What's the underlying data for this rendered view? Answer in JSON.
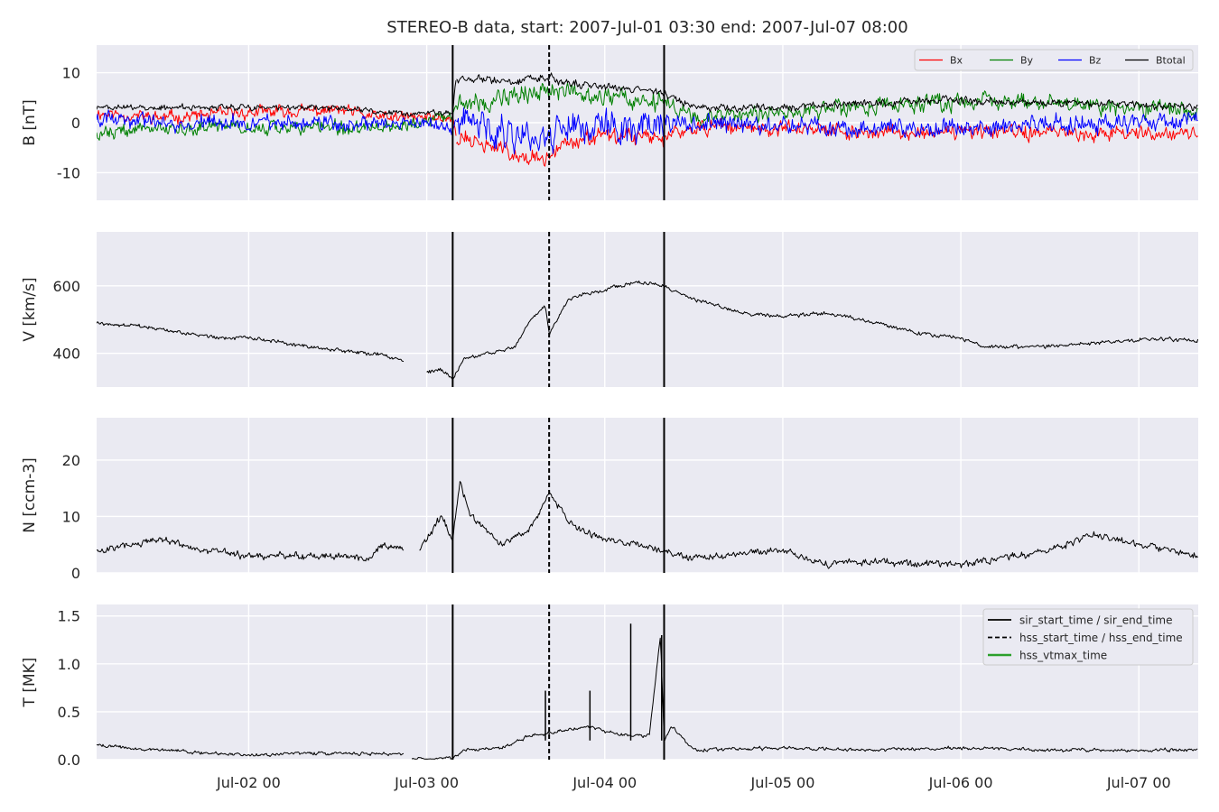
{
  "figure": {
    "title": "STEREO-B data, start: 2007-Jul-01 03:30  end: 2007-Jul-07 08:00"
  },
  "colors": {
    "panel_bg": "#eaeaf2",
    "grid": "#ffffff",
    "bx": "#ff0000",
    "by": "#008000",
    "bz": "#0000ff",
    "btotal": "#000000",
    "vtmax": "#2ca02c"
  },
  "chart_data": [
    {
      "type": "line",
      "x_axis": "time",
      "x_range": [
        "2007-07-01 03:30",
        "2007-07-07 08:00"
      ],
      "x_ticks": [
        "2007-07-02 00:00",
        "2007-07-03 00:00",
        "2007-07-04 00:00",
        "2007-07-05 00:00",
        "2007-07-06 00:00",
        "2007-07-07 00:00"
      ],
      "x_tick_labels": [
        "Jul-02 00",
        "Jul-03 00",
        "Jul-04 00",
        "Jul-05 00",
        "Jul-06 00",
        "Jul-07 00"
      ],
      "ylabel": "B [nT]",
      "ylim": [
        -15.5,
        15.5
      ],
      "yticks": [
        -10,
        0,
        10
      ],
      "grid": true,
      "legend": "top-right",
      "vlines": [
        {
          "time": "2007-07-03 03:30",
          "style": "solid"
        },
        {
          "time": "2007-07-03 16:30",
          "style": "dashed"
        },
        {
          "time": "2007-07-04 08:00",
          "style": "solid"
        }
      ],
      "series": [
        {
          "name": "Bx",
          "color": "#ff0000",
          "x": [
            "2007-07-01 03:30",
            "2007-07-01 12:00",
            "2007-07-02 00:00",
            "2007-07-02 12:00",
            "2007-07-02 18:00",
            "2007-07-03 00:00",
            "2007-07-03 03:30",
            "2007-07-03 04:00",
            "2007-07-03 12:00",
            "2007-07-03 16:30",
            "2007-07-03 18:00",
            "2007-07-04 00:00",
            "2007-07-04 08:00",
            "2007-07-04 12:00",
            "2007-07-05 00:00",
            "2007-07-05 12:00",
            "2007-07-06 00:00",
            "2007-07-06 12:00",
            "2007-07-07 00:00",
            "2007-07-07 08:00"
          ],
          "values": [
            2,
            1,
            2,
            2.5,
            1,
            1,
            1,
            -3,
            -6,
            -8,
            -4,
            -3,
            -3,
            -1,
            -1,
            -2,
            -2,
            -2,
            -2,
            -2
          ]
        },
        {
          "name": "By",
          "color": "#008000",
          "x": [
            "2007-07-01 03:30",
            "2007-07-01 12:00",
            "2007-07-02 00:00",
            "2007-07-02 12:00",
            "2007-07-02 18:00",
            "2007-07-03 00:00",
            "2007-07-03 03:30",
            "2007-07-03 04:00",
            "2007-07-03 12:00",
            "2007-07-03 16:30",
            "2007-07-03 18:00",
            "2007-07-04 00:00",
            "2007-07-04 08:00",
            "2007-07-04 12:00",
            "2007-07-05 00:00",
            "2007-07-05 12:00",
            "2007-07-06 00:00",
            "2007-07-06 12:00",
            "2007-07-07 00:00",
            "2007-07-07 08:00"
          ],
          "values": [
            -2,
            -1,
            -1,
            -1,
            -1,
            0,
            1,
            4,
            6,
            6,
            6,
            5,
            4,
            1,
            2,
            3,
            4,
            4,
            3,
            2
          ]
        },
        {
          "name": "Bz",
          "color": "#0000ff",
          "x": [
            "2007-07-01 03:30",
            "2007-07-01 12:00",
            "2007-07-02 00:00",
            "2007-07-02 12:00",
            "2007-07-02 18:00",
            "2007-07-03 00:00",
            "2007-07-03 03:30",
            "2007-07-03 04:00",
            "2007-07-03 12:00",
            "2007-07-03 16:30",
            "2007-07-03 18:00",
            "2007-07-04 00:00",
            "2007-07-04 08:00",
            "2007-07-04 12:00",
            "2007-07-05 00:00",
            "2007-07-05 12:00",
            "2007-07-06 00:00",
            "2007-07-06 12:00",
            "2007-07-07 00:00",
            "2007-07-07 08:00"
          ],
          "values": [
            1,
            0,
            0,
            -0.5,
            0,
            0,
            -1,
            0,
            -2,
            -3,
            0,
            -1,
            0,
            0,
            -1,
            -1,
            -1,
            0,
            0,
            1
          ]
        },
        {
          "name": "Btotal",
          "color": "#000000",
          "x": [
            "2007-07-01 03:30",
            "2007-07-01 12:00",
            "2007-07-02 00:00",
            "2007-07-02 12:00",
            "2007-07-02 18:00",
            "2007-07-03 00:00",
            "2007-07-03 03:30",
            "2007-07-03 04:00",
            "2007-07-03 12:00",
            "2007-07-03 16:30",
            "2007-07-03 18:00",
            "2007-07-04 00:00",
            "2007-07-04 08:00",
            "2007-07-04 12:00",
            "2007-07-05 00:00",
            "2007-07-05 12:00",
            "2007-07-06 00:00",
            "2007-07-06 12:00",
            "2007-07-07 00:00",
            "2007-07-07 08:00"
          ],
          "values": [
            3,
            3,
            3,
            3,
            2,
            2,
            2,
            9,
            8,
            9,
            8,
            7,
            6,
            3,
            3,
            4,
            4.5,
            4,
            3.5,
            3
          ]
        }
      ]
    },
    {
      "type": "line",
      "x_axis": "time",
      "ylabel": "V [km/s]",
      "ylim": [
        300,
        760
      ],
      "yticks": [
        400,
        600
      ],
      "grid": true,
      "vlines": [
        {
          "time": "2007-07-03 03:30",
          "style": "solid"
        },
        {
          "time": "2007-07-03 16:30",
          "style": "dashed"
        },
        {
          "time": "2007-07-04 08:00",
          "style": "solid"
        }
      ],
      "series": [
        {
          "color": "#000000",
          "segments": [
            {
              "x": [
                "2007-07-01 03:30",
                "2007-07-01 09:00",
                "2007-07-01 15:00",
                "2007-07-01 21:00",
                "2007-07-02 00:00",
                "2007-07-02 06:00",
                "2007-07-02 12:00",
                "2007-07-02 18:00",
                "2007-07-02 21:00"
              ],
              "values": [
                490,
                480,
                460,
                445,
                445,
                425,
                410,
                395,
                375
              ]
            },
            {
              "x": [
                "2007-07-03 00:00",
                "2007-07-03 02:00",
                "2007-07-03 03:30",
                "2007-07-03 05:00",
                "2007-07-03 08:00",
                "2007-07-03 12:00",
                "2007-07-03 14:00",
                "2007-07-03 16:00",
                "2007-07-03 16:30",
                "2007-07-03 19:00",
                "2007-07-04 00:00",
                "2007-07-04 04:00",
                "2007-07-04 08:00",
                "2007-07-04 12:00",
                "2007-07-04 18:00",
                "2007-07-05 00:00",
                "2007-07-05 06:00",
                "2007-07-05 12:00",
                "2007-07-05 18:00",
                "2007-07-06 00:00",
                "2007-07-06 03:00",
                "2007-07-06 12:00",
                "2007-07-06 18:00",
                "2007-07-07 00:00",
                "2007-07-07 08:00"
              ],
              "values": [
                345,
                350,
                325,
                380,
                400,
                420,
                500,
                540,
                455,
                560,
                590,
                610,
                600,
                560,
                520,
                510,
                520,
                495,
                460,
                445,
                420,
                420,
                430,
                440,
                440
              ]
            }
          ]
        }
      ]
    },
    {
      "type": "line",
      "x_axis": "time",
      "ylabel": "N [ccm-3]",
      "ylim": [
        0,
        27.5
      ],
      "yticks": [
        0,
        10,
        20
      ],
      "grid": true,
      "vlines": [
        {
          "time": "2007-07-03 03:30",
          "style": "solid"
        },
        {
          "time": "2007-07-03 16:30",
          "style": "dashed"
        },
        {
          "time": "2007-07-04 08:00",
          "style": "solid"
        }
      ],
      "series": [
        {
          "color": "#000000",
          "segments": [
            {
              "x": [
                "2007-07-01 03:30",
                "2007-07-01 12:00",
                "2007-07-01 18:00",
                "2007-07-02 00:00",
                "2007-07-02 12:00",
                "2007-07-02 16:00",
                "2007-07-02 18:00",
                "2007-07-02 21:00"
              ],
              "values": [
                4,
                6,
                4,
                3,
                3,
                2.5,
                5,
                4
              ]
            },
            {
              "x": [
                "2007-07-02 23:00",
                "2007-07-03 02:00",
                "2007-07-03 03:30",
                "2007-07-03 04:30",
                "2007-07-03 06:00",
                "2007-07-03 10:00",
                "2007-07-03 14:00",
                "2007-07-03 16:30",
                "2007-07-03 20:00",
                "2007-07-04 00:00",
                "2007-07-04 04:00",
                "2007-07-04 08:00",
                "2007-07-04 12:00",
                "2007-07-05 00:00",
                "2007-07-05 06:00",
                "2007-07-05 12:00",
                "2007-07-06 00:00",
                "2007-07-06 12:00",
                "2007-07-06 18:00",
                "2007-07-07 00:00",
                "2007-07-07 08:00"
              ],
              "values": [
                4,
                10,
                6,
                16,
                10,
                5,
                8,
                14,
                8,
                6,
                5,
                4,
                2.5,
                4,
                1.5,
                2,
                1.5,
                4,
                7,
                5,
                3
              ]
            }
          ]
        }
      ]
    },
    {
      "type": "line",
      "x_axis": "time",
      "ylabel": "T [MK]",
      "ylim": [
        0.0,
        1.62
      ],
      "yticks": [
        0.0,
        0.5,
        1.0,
        1.5
      ],
      "grid": true,
      "legend": "top-right",
      "vlines": [
        {
          "time": "2007-07-03 03:30",
          "style": "solid",
          "name": "sir_start_time / sir_end_time"
        },
        {
          "time": "2007-07-03 16:30",
          "style": "dashed",
          "name": "hss_start_time / hss_end_time"
        },
        {
          "time": "2007-07-04 08:00",
          "style": "solid"
        }
      ],
      "legend_entries": [
        {
          "label": "sir_start_time / sir_end_time",
          "style": "solid",
          "color": "#000000"
        },
        {
          "label": "hss_start_time / hss_end_time",
          "style": "dashed",
          "color": "#000000"
        },
        {
          "label": "hss_vtmax_time",
          "style": "solid",
          "color": "#2ca02c"
        }
      ],
      "series": [
        {
          "color": "#000000",
          "segments": [
            {
              "x": [
                "2007-07-01 03:30",
                "2007-07-01 12:00",
                "2007-07-02 00:00",
                "2007-07-02 12:00",
                "2007-07-02 21:00"
              ],
              "values": [
                0.15,
                0.1,
                0.05,
                0.07,
                0.06
              ]
            },
            {
              "x": [
                "2007-07-02 22:00",
                "2007-07-03 03:30",
                "2007-07-03 05:00",
                "2007-07-03 10:00",
                "2007-07-03 14:00",
                "2007-07-03 16:30",
                "2007-07-03 18:00",
                "2007-07-03 22:00",
                "2007-07-04 00:00",
                "2007-07-04 03:00",
                "2007-07-04 06:00",
                "2007-07-04 07:30",
                "2007-07-04 08:00",
                "2007-07-04 09:00",
                "2007-07-04 12:00",
                "2007-07-05 00:00",
                "2007-07-05 12:00",
                "2007-07-06 00:00",
                "2007-07-06 12:00",
                "2007-07-07 00:00",
                "2007-07-07 08:00"
              ],
              "values": [
                0.01,
                0.02,
                0.1,
                0.12,
                0.25,
                0.28,
                0.3,
                0.35,
                0.3,
                0.25,
                0.25,
                1.3,
                0.2,
                0.35,
                0.1,
                0.12,
                0.1,
                0.12,
                0.1,
                0.1,
                0.1
              ]
            }
          ],
          "spikes": [
            {
              "x": "2007-07-03 16:00",
              "value": 0.72
            },
            {
              "x": "2007-07-03 22:00",
              "value": 0.72
            },
            {
              "x": "2007-07-04 03:30",
              "value": 1.42
            },
            {
              "x": "2007-07-04 07:40",
              "value": 1.3
            }
          ]
        }
      ]
    }
  ]
}
